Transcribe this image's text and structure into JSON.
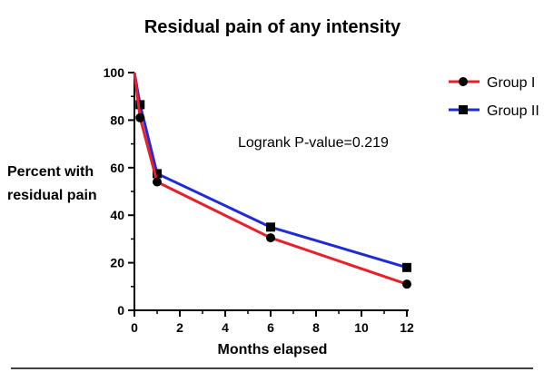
{
  "chart_data": {
    "type": "line",
    "title": "Residual pain of any intensity",
    "xlabel": "Months elapsed",
    "ylabel": [
      "Percent with",
      "residual pain"
    ],
    "xlim": [
      0,
      12
    ],
    "ylim": [
      0,
      100
    ],
    "xticks": [
      0,
      2,
      4,
      6,
      8,
      10,
      12
    ],
    "yticks": [
      0,
      20,
      40,
      60,
      80,
      100
    ],
    "grid": false,
    "legend_position": "top-right",
    "annotation": "Logrank P-value=0.219",
    "series": [
      {
        "name": "Group I",
        "color": "#e8202a",
        "marker": "circle",
        "x": [
          0,
          0.25,
          1,
          6,
          12
        ],
        "y": [
          100,
          81,
          54,
          30.5,
          11
        ]
      },
      {
        "name": "Group II",
        "color": "#1f2bd6",
        "marker": "square",
        "x": [
          0,
          0.25,
          1,
          6,
          12
        ],
        "y": [
          100,
          86.5,
          57.5,
          35,
          18
        ]
      }
    ]
  }
}
